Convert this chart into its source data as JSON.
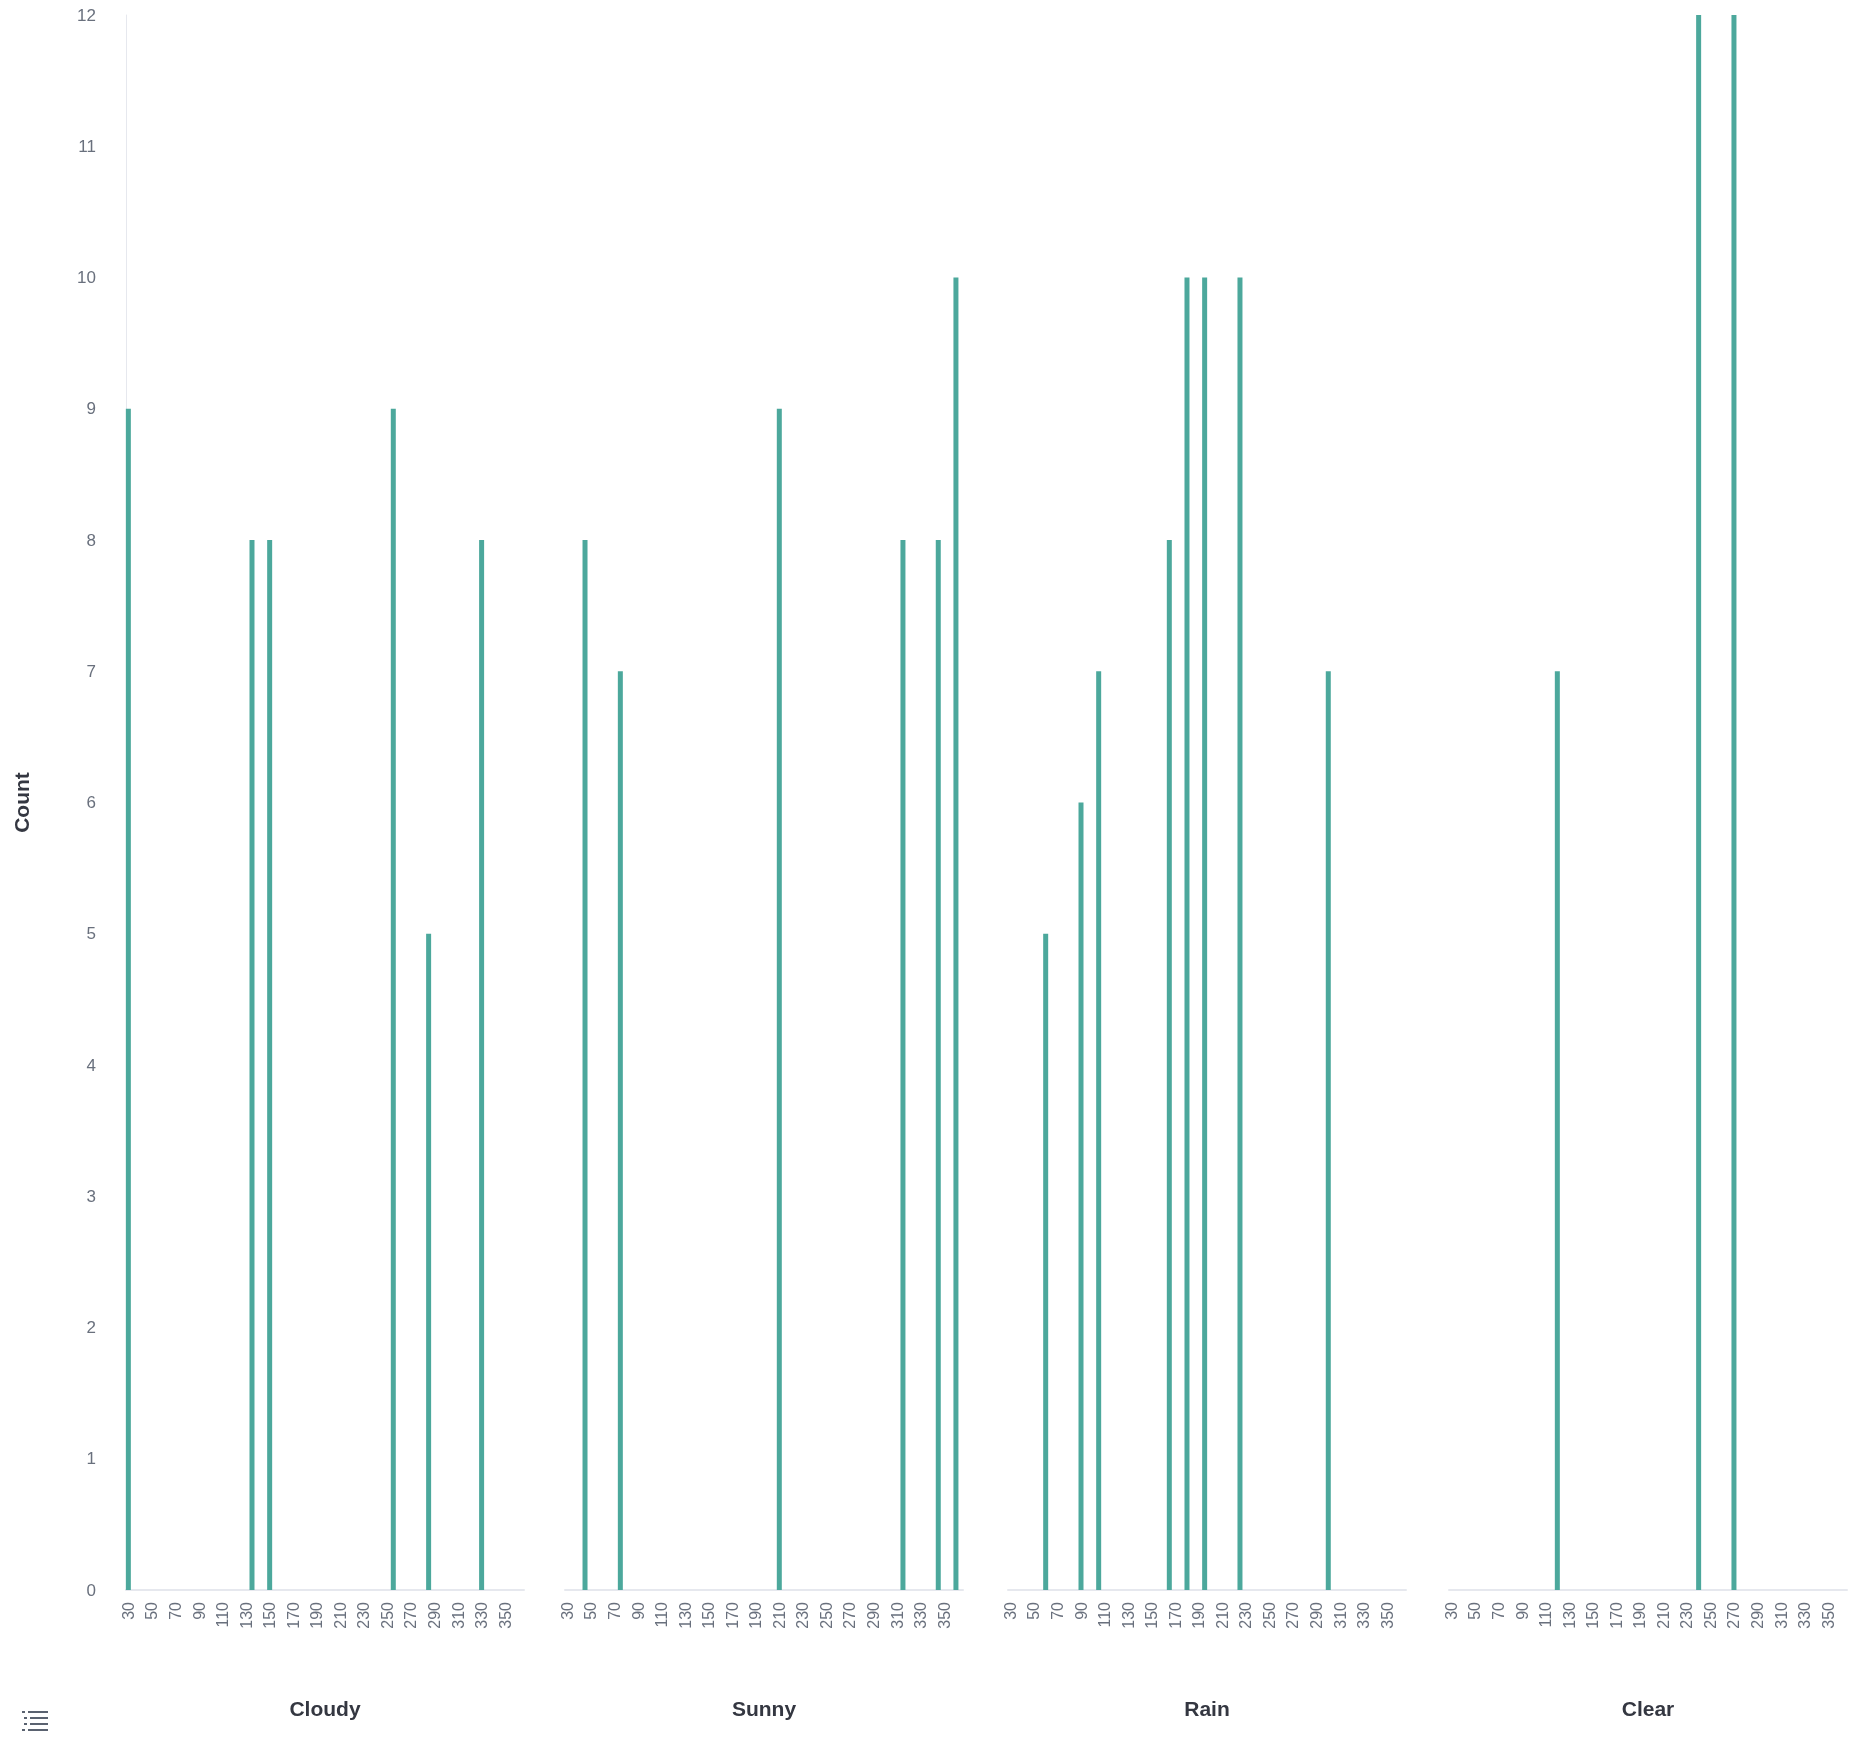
{
  "chart_data": [
    {
      "type": "bar",
      "xlabel": "Cloudy",
      "ylabel": "Count",
      "x": [
        30,
        135,
        150,
        255,
        285,
        330
      ],
      "values": [
        9,
        8,
        8,
        9,
        5,
        8
      ],
      "color": "#4ca89c",
      "xlim": [
        28,
        366
      ],
      "xticks": [
        30,
        50,
        70,
        90,
        110,
        130,
        150,
        170,
        190,
        210,
        230,
        250,
        270,
        290,
        310,
        330,
        350
      ],
      "ylim": [
        0,
        12
      ],
      "yticks": [
        0,
        1,
        2,
        3,
        4,
        5,
        6,
        7,
        8,
        9,
        10,
        11,
        12
      ],
      "grid": false
    },
    {
      "type": "bar",
      "xlabel": "Sunny",
      "x": [
        45,
        75,
        210,
        315,
        345,
        360
      ],
      "values": [
        8,
        7,
        9,
        8,
        8,
        10
      ],
      "color": "#4ca89c",
      "xlim": [
        28,
        366
      ],
      "xticks": [
        30,
        50,
        70,
        90,
        110,
        130,
        150,
        170,
        190,
        210,
        230,
        250,
        270,
        290,
        310,
        330,
        350
      ],
      "ylim": [
        0,
        12
      ],
      "yticks": [
        0,
        1,
        2,
        3,
        4,
        5,
        6,
        7,
        8,
        9,
        10,
        11,
        12
      ],
      "grid": false,
      "tick_labels": "x"
    },
    {
      "type": "bar",
      "xlabel": "Rain",
      "x": [
        60,
        90,
        105,
        165,
        180,
        195,
        225,
        300
      ],
      "values": [
        5,
        6,
        7,
        8,
        10,
        10,
        10,
        7
      ],
      "color": "#4ca89c",
      "xlim": [
        28,
        366
      ],
      "xticks": [
        30,
        50,
        70,
        90,
        110,
        130,
        150,
        170,
        190,
        210,
        230,
        250,
        270,
        290,
        310,
        330,
        350
      ],
      "ylim": [
        0,
        12
      ],
      "yticks": [
        0,
        1,
        2,
        3,
        4,
        5,
        6,
        7,
        8,
        9,
        10,
        11,
        12
      ],
      "grid": false,
      "tick_labels": "x"
    },
    {
      "type": "bar",
      "xlabel": "Clear",
      "x": [
        120,
        240,
        270
      ],
      "values": [
        7,
        12,
        12
      ],
      "color": "#4ca89c",
      "xlim": [
        28,
        366
      ],
      "xticks": [
        30,
        50,
        70,
        90,
        110,
        130,
        150,
        170,
        190,
        210,
        230,
        250,
        270,
        290,
        310,
        330,
        350
      ],
      "ylim": [
        0,
        12
      ],
      "yticks": [
        0,
        1,
        2,
        3,
        4,
        5,
        6,
        7,
        8,
        9,
        10,
        11,
        12
      ],
      "grid": false,
      "tick_labels": "x"
    }
  ]
}
